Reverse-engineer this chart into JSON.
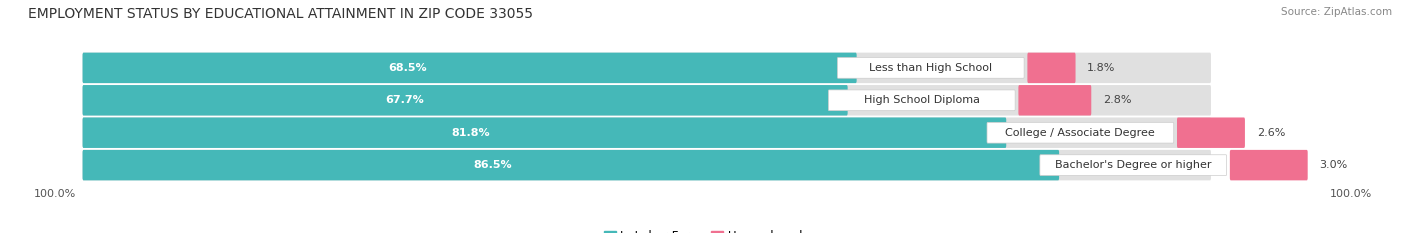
{
  "title": "EMPLOYMENT STATUS BY EDUCATIONAL ATTAINMENT IN ZIP CODE 33055",
  "source": "Source: ZipAtlas.com",
  "categories": [
    "Less than High School",
    "High School Diploma",
    "College / Associate Degree",
    "Bachelor's Degree or higher"
  ],
  "labor_force_pct": [
    68.5,
    67.7,
    81.8,
    86.5
  ],
  "unemployed_pct": [
    1.8,
    2.8,
    2.6,
    3.0
  ],
  "labor_force_color": "#45b8b8",
  "unemployed_color": "#f07090",
  "bar_bg_color": "#e0e0e0",
  "background_color": "#ffffff",
  "title_fontsize": 10,
  "pct_fontsize": 8,
  "cat_fontsize": 8,
  "bar_height": 0.62,
  "left_label": "100.0%",
  "right_label": "100.0%",
  "xlim_left": -5,
  "xlim_right": 115,
  "total_bar_width": 100
}
